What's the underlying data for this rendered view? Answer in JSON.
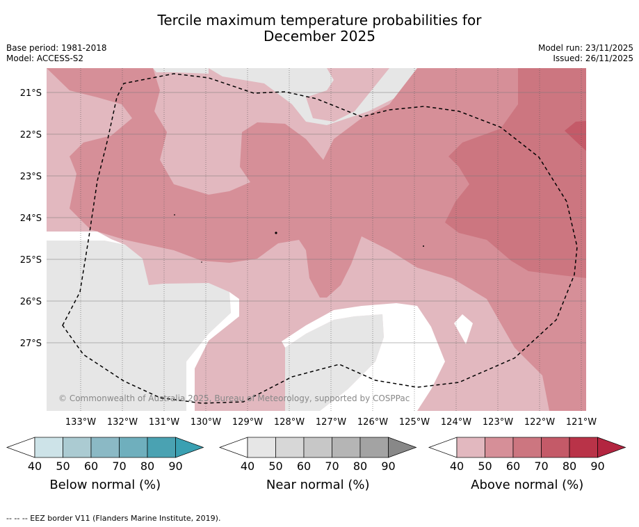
{
  "title_line1": "Tercile maximum temperature probabilities for",
  "title_line2": "December 2025",
  "meta": {
    "base_period": "Base period: 1981-2018",
    "model": "Model: ACCESS-S2",
    "model_run": "Model run: 23/11/2025",
    "issued": "Issued: 26/11/2025"
  },
  "latitude_labels": [
    "21°S",
    "22°S",
    "23°S",
    "24°S",
    "25°S",
    "26°S",
    "27°S"
  ],
  "longitude_labels": [
    "133°W",
    "132°W",
    "131°W",
    "130°W",
    "129°W",
    "128°W",
    "127°W",
    "126°W",
    "125°W",
    "124°W",
    "123°W",
    "122°W",
    "121°W"
  ],
  "copyright": "© Commonwealth of Australia 2025, Bureau of Meteorology, supported by COSPPac",
  "colorbars": [
    {
      "title": "Below normal (%)",
      "ticks": [
        "40",
        "50",
        "60",
        "70",
        "80",
        "90"
      ],
      "colors": [
        "#cde3e8",
        "#abcbd2",
        "#8bb9c5",
        "#6fafbd",
        "#4aa2b2"
      ],
      "arrow_color": "#3aa0b2"
    },
    {
      "title": "Near normal (%)",
      "ticks": [
        "40",
        "50",
        "60",
        "70",
        "80",
        "90"
      ],
      "colors": [
        "#e6e6e6",
        "#d7d7d7",
        "#c7c7c7",
        "#b5b5b5",
        "#a3a3a3"
      ],
      "arrow_color": "#888888"
    },
    {
      "title": "Above normal (%)",
      "ticks": [
        "40",
        "50",
        "60",
        "70",
        "80",
        "90"
      ],
      "colors": [
        "#e2b8bf",
        "#d68f98",
        "#cc7680",
        "#c45a68",
        "#b93348"
      ],
      "arrow_color": "#b32540"
    }
  ],
  "footer": "--  --  -- EEZ border V11 (Flanders Marine Institute, 2019)."
}
